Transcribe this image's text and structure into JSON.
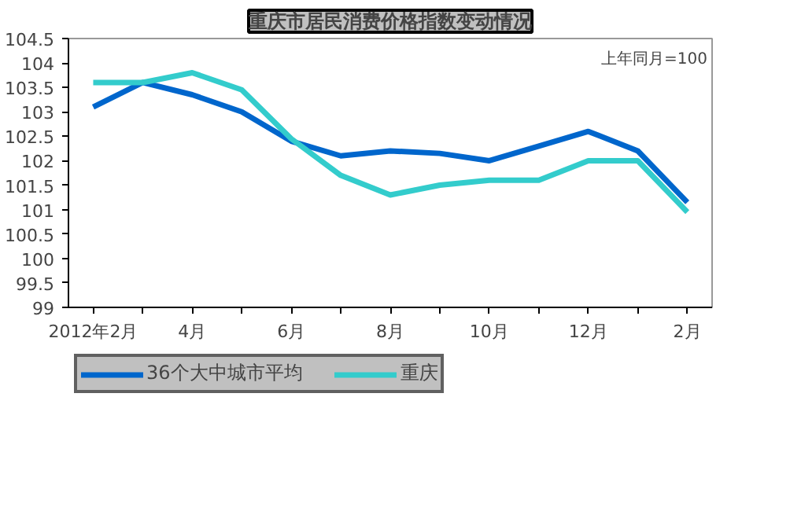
{
  "chart_data": {
    "type": "line",
    "title": "重庆市居民消费价格指数变动情况",
    "categories": [
      "2012年2月",
      null,
      "4月",
      null,
      "6月",
      null,
      "8月",
      null,
      "10月",
      null,
      "12月",
      null,
      "2月"
    ],
    "series": [
      {
        "name": "36个大中城市平均",
        "color": "#0066cc",
        "values": [
          103.1,
          103.6,
          103.35,
          103.0,
          102.4,
          102.1,
          102.2,
          102.15,
          102.0,
          102.3,
          102.6,
          102.2,
          101.15
        ]
      },
      {
        "name": "重庆",
        "color": "#33cccc",
        "values": [
          103.6,
          103.6,
          103.8,
          103.45,
          102.45,
          101.7,
          101.3,
          101.5,
          101.6,
          101.6,
          102.0,
          102.0,
          100.95
        ]
      }
    ],
    "ylim": [
      99,
      104.5
    ],
    "yticks": [
      99,
      99.5,
      100,
      100.5,
      101,
      101.5,
      102,
      102.5,
      103,
      103.5,
      104,
      104.5
    ],
    "annotations": [
      "上年同月=100"
    ],
    "grid": false,
    "legend": "bottom",
    "marker": "none",
    "line_style": "solid"
  }
}
